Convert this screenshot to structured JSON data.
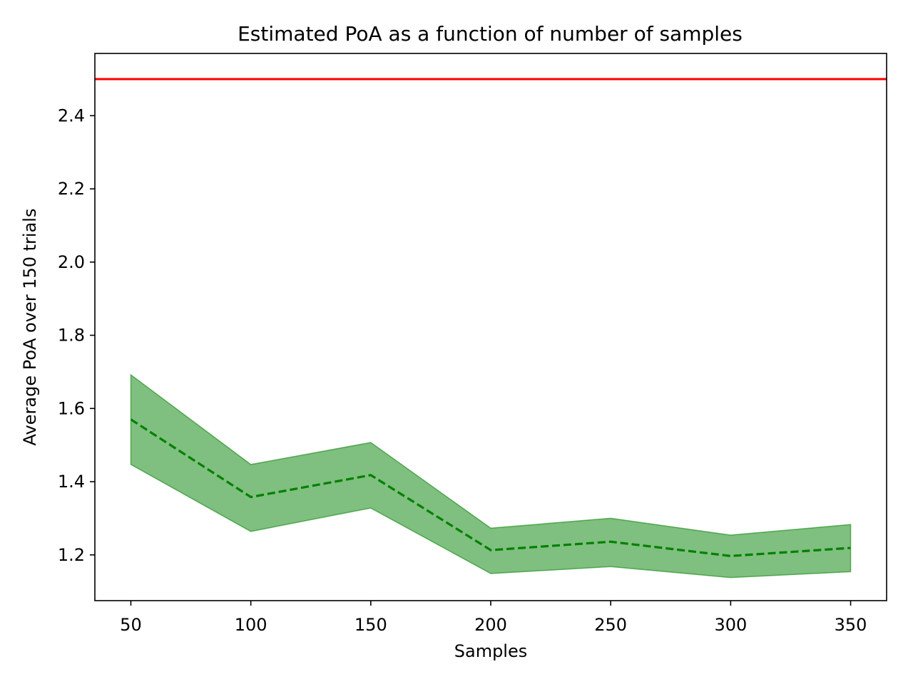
{
  "chart_data": {
    "type": "line",
    "title": "Estimated PoA as a function of number of samples",
    "xlabel": "Samples",
    "ylabel": "Average PoA over 150 trials",
    "x": [
      50,
      100,
      150,
      200,
      250,
      300,
      350
    ],
    "xlim": [
      35,
      365
    ],
    "ylim": [
      1.075,
      2.57
    ],
    "xticks": [
      "50",
      "100",
      "150",
      "200",
      "250",
      "300",
      "350"
    ],
    "yticks": [
      "1.2",
      "1.4",
      "1.6",
      "1.8",
      "2.0",
      "2.2",
      "2.4"
    ],
    "series": [
      {
        "role": "mean",
        "style": "dashed",
        "color": "#008000",
        "values": [
          1.57,
          1.358,
          1.418,
          1.213,
          1.236,
          1.197,
          1.219
        ]
      }
    ],
    "band": {
      "color": "#008000",
      "opacity": 0.5,
      "upper": [
        1.692,
        1.447,
        1.507,
        1.273,
        1.3,
        1.254,
        1.283
      ],
      "lower": [
        1.447,
        1.264,
        1.328,
        1.149,
        1.168,
        1.138,
        1.154
      ]
    },
    "reference_line": {
      "y": 2.5,
      "color": "#ff0000"
    },
    "grid": false,
    "legend": "none"
  }
}
